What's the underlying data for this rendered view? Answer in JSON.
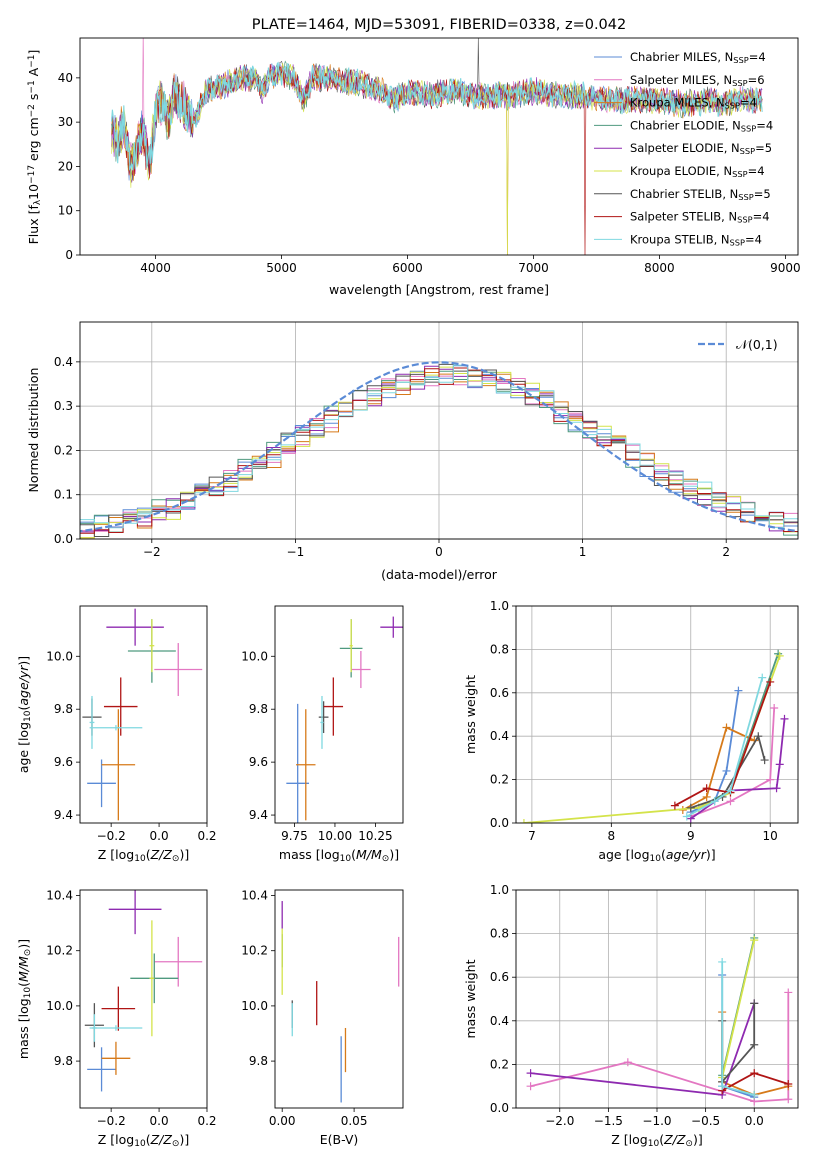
{
  "chart_data": [
    {
      "id": "spectrum",
      "type": "line",
      "title": "PLATE=1464, MJD=53091, FIBERID=0338, z=0.042",
      "xlabel": "wavelength [Angstrom, rest frame]",
      "ylabel": "Flux [f_λ10^-17 erg cm^-2 s^-1 A^-1]",
      "xlim": [
        3400,
        9100
      ],
      "ylim": [
        0,
        49
      ],
      "xticks": [
        4000,
        5000,
        6000,
        7000,
        8000,
        9000
      ],
      "yticks": [
        0,
        10,
        20,
        30,
        40
      ],
      "grid": false,
      "legend_position": "top-right",
      "anchors": [
        [
          3650,
          28
        ],
        [
          3700,
          26
        ],
        [
          3750,
          30
        ],
        [
          3800,
          20
        ],
        [
          3850,
          24
        ],
        [
          3900,
          28
        ],
        [
          3950,
          20
        ],
        [
          4000,
          32
        ],
        [
          4050,
          35
        ],
        [
          4100,
          30
        ],
        [
          4150,
          36
        ],
        [
          4200,
          35
        ],
        [
          4300,
          30
        ],
        [
          4400,
          37
        ],
        [
          4500,
          38
        ],
        [
          4600,
          39
        ],
        [
          4700,
          40
        ],
        [
          4800,
          40
        ],
        [
          4850,
          37
        ],
        [
          4900,
          40
        ],
        [
          5000,
          41
        ],
        [
          5100,
          40
        ],
        [
          5175,
          35
        ],
        [
          5250,
          40
        ],
        [
          5400,
          40
        ],
        [
          5500,
          39
        ],
        [
          5600,
          39
        ],
        [
          5700,
          38
        ],
        [
          5800,
          37
        ],
        [
          5890,
          35
        ],
        [
          6000,
          37
        ],
        [
          6200,
          36
        ],
        [
          6300,
          37
        ],
        [
          6400,
          37
        ],
        [
          6500,
          36
        ],
        [
          6563,
          36
        ],
        [
          6700,
          36
        ],
        [
          6800,
          36
        ],
        [
          7000,
          37
        ],
        [
          7200,
          36
        ],
        [
          7400,
          36
        ],
        [
          7600,
          35
        ],
        [
          7800,
          35
        ],
        [
          8000,
          35
        ],
        [
          8200,
          34
        ],
        [
          8400,
          35
        ],
        [
          8500,
          34
        ],
        [
          8600,
          35
        ],
        [
          8800,
          35
        ]
      ],
      "series": [
        {
          "name": "Chabrier MILES, N_SSP=4",
          "label_main": "Chabrier MILES, N",
          "sub": "SSP",
          "label_end": "=4",
          "color": "#5b8bd6"
        },
        {
          "name": "Salpeter MILES, N_SSP=6",
          "label_main": "Salpeter MILES, N",
          "sub": "SSP",
          "label_end": "=6",
          "color": "#e377c2"
        },
        {
          "name": "Kroupa MILES, N_SSP=4",
          "label_main": "Kroupa MILES, N",
          "sub": "SSP",
          "label_end": "=4",
          "color": "#d67a1a"
        },
        {
          "name": "Chabrier ELODIE, N_SSP=4",
          "label_main": "Chabrier ELODIE, N",
          "sub": "SSP",
          "label_end": "=4",
          "color": "#4f9a7f"
        },
        {
          "name": "Salpeter ELODIE, N_SSP=5",
          "label_main": "Salpeter ELODIE, N",
          "sub": "SSP",
          "label_end": "=5",
          "color": "#8e2ab0"
        },
        {
          "name": "Kroupa ELODIE, N_SSP=4",
          "label_main": "Kroupa ELODIE, N",
          "sub": "SSP",
          "label_end": "=4",
          "color": "#d4e34a"
        },
        {
          "name": "Chabrier STELIB, N_SSP=5",
          "label_main": "Chabrier STELIB, N",
          "sub": "SSP",
          "label_end": "=5",
          "color": "#555555"
        },
        {
          "name": "Salpeter STELIB, N_SSP=4",
          "label_main": "Salpeter STELIB, N",
          "sub": "SSP",
          "label_end": "=4",
          "color": "#b01515"
        },
        {
          "name": "Kroupa STELIB, N_SSP=4",
          "label_main": "Kroupa STELIB, N",
          "sub": "SSP",
          "label_end": "=4",
          "color": "#7fd8e0"
        }
      ]
    },
    {
      "id": "residuals",
      "type": "histogram",
      "xlabel": "(data-model)/error",
      "ylabel": "Normed distribution",
      "xlim": [
        -2.5,
        2.5
      ],
      "ylim": [
        0,
        0.49
      ],
      "xticks": [
        -2,
        -1,
        0,
        1,
        2
      ],
      "yticks": [
        0,
        0.1,
        0.2,
        0.3,
        0.4
      ],
      "grid": true,
      "legend": "𝒩(0,1)",
      "gaussian_color": "#5b8bd6"
    },
    {
      "id": "age_vs_Z",
      "type": "errorbar",
      "xlabel": "Z [log10(Z/Z⊙)]",
      "ylabel": "age  [log10(age/yr)]",
      "xlim": [
        -0.33,
        0.2
      ],
      "ylim": [
        9.37,
        10.19
      ],
      "xticks": [
        -0.2,
        0.0,
        0.2
      ],
      "yticks": [
        9.4,
        9.6,
        9.8,
        10.0
      ],
      "points": [
        {
          "x": -0.24,
          "xerr": 0.06,
          "y": 9.52,
          "yerr": 0.09,
          "color": "#5b8bd6"
        },
        {
          "x": 0.08,
          "xerr": 0.1,
          "y": 9.95,
          "yerr": 0.1,
          "color": "#e377c2"
        },
        {
          "x": -0.17,
          "xerr": 0.07,
          "y": 9.59,
          "yerr": 0.21,
          "color": "#d67a1a"
        },
        {
          "x": -0.03,
          "xerr": 0.1,
          "y": 10.02,
          "yerr": 0.12,
          "color": "#4f9a7f"
        },
        {
          "x": -0.1,
          "xerr": 0.12,
          "y": 10.11,
          "yerr": 0.07,
          "color": "#8e2ab0"
        },
        {
          "x": -0.03,
          "xerr": 0.01,
          "y": 10.04,
          "yerr": 0.1,
          "color": "#d4e34a"
        },
        {
          "x": -0.28,
          "xerr": 0.04,
          "y": 9.77,
          "yerr": 0.07,
          "color": "#555555"
        },
        {
          "x": -0.16,
          "xerr": 0.07,
          "y": 9.81,
          "yerr": 0.11,
          "color": "#b01515"
        },
        {
          "x": -0.28,
          "xerr": 0.01,
          "y": 9.75,
          "yerr": 0.1,
          "color": "#7fd8e0"
        },
        {
          "x": -0.18,
          "xerr": 0.11,
          "y": 9.73,
          "yerr": 0.01,
          "color": "#7fd8e0"
        }
      ]
    },
    {
      "id": "age_vs_mass",
      "type": "errorbar",
      "xlabel": "mass [log10(M/M⊙)]",
      "ylabel": "",
      "xlim": [
        9.63,
        10.42
      ],
      "ylim": [
        9.37,
        10.19
      ],
      "xticks": [
        9.75,
        10.0,
        10.25
      ],
      "yticks": [
        9.4,
        9.6,
        9.8,
        10.0
      ],
      "points": [
        {
          "x": 9.77,
          "xerr": 0.07,
          "y": 9.52,
          "yerr": 0.3,
          "color": "#5b8bd6"
        },
        {
          "x": 10.16,
          "xerr": 0.06,
          "y": 9.95,
          "yerr": 0.07,
          "color": "#e377c2"
        },
        {
          "x": 9.82,
          "xerr": 0.06,
          "y": 9.59,
          "yerr": 0.21,
          "color": "#d67a1a"
        },
        {
          "x": 10.1,
          "xerr": 0.07,
          "y": 10.03,
          "yerr": 0.11,
          "color": "#4f9a7f"
        },
        {
          "x": 10.36,
          "xerr": 0.08,
          "y": 10.11,
          "yerr": 0.04,
          "color": "#8e2ab0"
        },
        {
          "x": 10.1,
          "xerr": 0.01,
          "y": 10.04,
          "yerr": 0.1,
          "color": "#d4e34a"
        },
        {
          "x": 9.93,
          "xerr": 0.03,
          "y": 9.77,
          "yerr": 0.06,
          "color": "#555555"
        },
        {
          "x": 9.99,
          "xerr": 0.06,
          "y": 9.81,
          "yerr": 0.11,
          "color": "#b01515"
        },
        {
          "x": 9.92,
          "xerr": 0.01,
          "y": 9.75,
          "yerr": 0.1,
          "color": "#7fd8e0"
        }
      ]
    },
    {
      "id": "mass_weight_vs_age",
      "type": "line",
      "xlabel": "age  [log10(age/yr)]",
      "ylabel": "mass weight",
      "xlim": [
        6.8,
        10.35
      ],
      "ylim": [
        0,
        1
      ],
      "xticks": [
        7,
        8,
        9,
        10
      ],
      "yticks": [
        0,
        0.2,
        0.4,
        0.6,
        0.8,
        1.0
      ],
      "grid": true,
      "series": [
        {
          "color": "#5b8bd6",
          "points": [
            [
              9.0,
              0.05
            ],
            [
              9.3,
              0.1
            ],
            [
              9.45,
              0.24
            ],
            [
              9.6,
              0.61
            ]
          ]
        },
        {
          "color": "#e377c2",
          "points": [
            [
              9.0,
              0.03
            ],
            [
              9.5,
              0.1
            ],
            [
              10.0,
              0.2
            ],
            [
              10.05,
              0.53
            ]
          ]
        },
        {
          "color": "#d67a1a",
          "points": [
            [
              8.9,
              0.06
            ],
            [
              9.2,
              0.12
            ],
            [
              9.45,
              0.44
            ],
            [
              9.8,
              0.38
            ]
          ]
        },
        {
          "color": "#4f9a7f",
          "points": [
            [
              9.1,
              0.07
            ],
            [
              9.5,
              0.15
            ],
            [
              10.1,
              0.78
            ]
          ]
        },
        {
          "color": "#8e2ab0",
          "points": [
            [
              9.0,
              0.02
            ],
            [
              9.5,
              0.15
            ],
            [
              10.08,
              0.16
            ],
            [
              10.12,
              0.27
            ],
            [
              10.18,
              0.48
            ]
          ]
        },
        {
          "color": "#d4e34a",
          "points": [
            [
              6.9,
              0.0
            ],
            [
              9.1,
              0.07
            ],
            [
              9.5,
              0.14
            ],
            [
              10.12,
              0.77
            ]
          ]
        },
        {
          "color": "#555555",
          "points": [
            [
              9.0,
              0.07
            ],
            [
              9.4,
              0.12
            ],
            [
              9.85,
              0.4
            ],
            [
              9.93,
              0.29
            ]
          ]
        },
        {
          "color": "#b01515",
          "points": [
            [
              8.8,
              0.08
            ],
            [
              9.2,
              0.16
            ],
            [
              9.5,
              0.14
            ],
            [
              10.0,
              0.65
            ]
          ]
        },
        {
          "color": "#7fd8e0",
          "points": [
            [
              8.95,
              0.03
            ],
            [
              9.3,
              0.1
            ],
            [
              9.5,
              0.15
            ],
            [
              9.9,
              0.67
            ]
          ]
        }
      ]
    },
    {
      "id": "mass_vs_Z",
      "type": "errorbar",
      "xlabel": "Z [log10(Z/Z⊙)]",
      "ylabel": "mass [log10(M/M⊙)]",
      "xlim": [
        -0.33,
        0.2
      ],
      "ylim": [
        9.63,
        10.42
      ],
      "xticks": [
        -0.2,
        0.0,
        0.2
      ],
      "yticks": [
        9.8,
        10.0,
        10.2,
        10.4
      ],
      "points": [
        {
          "x": -0.24,
          "xerr": 0.06,
          "y": 9.77,
          "yerr": 0.08,
          "color": "#5b8bd6"
        },
        {
          "x": 0.08,
          "xerr": 0.1,
          "y": 10.16,
          "yerr": 0.09,
          "color": "#e377c2"
        },
        {
          "x": -0.18,
          "xerr": 0.06,
          "y": 9.81,
          "yerr": 0.06,
          "color": "#d67a1a"
        },
        {
          "x": -0.02,
          "xerr": 0.1,
          "y": 10.1,
          "yerr": 0.09,
          "color": "#4f9a7f"
        },
        {
          "x": -0.1,
          "xerr": 0.11,
          "y": 10.35,
          "yerr": 0.09,
          "color": "#8e2ab0"
        },
        {
          "x": -0.03,
          "xerr": 0.01,
          "y": 10.1,
          "yerr": 0.21,
          "color": "#d4e34a"
        },
        {
          "x": -0.27,
          "xerr": 0.04,
          "y": 9.93,
          "yerr": 0.08,
          "color": "#555555"
        },
        {
          "x": -0.17,
          "xerr": 0.07,
          "y": 9.99,
          "yerr": 0.08,
          "color": "#b01515"
        },
        {
          "x": -0.27,
          "xerr": 0.01,
          "y": 9.92,
          "yerr": 0.05,
          "color": "#7fd8e0"
        },
        {
          "x": -0.18,
          "xerr": 0.11,
          "y": 9.92,
          "yerr": 0.01,
          "color": "#7fd8e0"
        }
      ]
    },
    {
      "id": "mass_vs_EBV",
      "type": "errorbar",
      "xlabel": "E(B-V)",
      "ylabel": "",
      "xlim": [
        -0.005,
        0.084
      ],
      "ylim": [
        9.63,
        10.42
      ],
      "xticks": [
        0.0,
        0.05
      ],
      "yticks": [
        9.8,
        10.0,
        10.2,
        10.4
      ],
      "points": [
        {
          "x": 0.041,
          "xerr": 0.0,
          "y": 9.77,
          "yerr": 0.12,
          "color": "#5b8bd6"
        },
        {
          "x": 0.081,
          "xerr": 0.0,
          "y": 10.16,
          "yerr": 0.09,
          "color": "#e377c2"
        },
        {
          "x": 0.044,
          "xerr": 0.0,
          "y": 9.84,
          "yerr": 0.08,
          "color": "#d67a1a"
        },
        {
          "x": 0.0,
          "xerr": 0.0,
          "y": 10.2,
          "yerr": 0.06,
          "color": "#4f9a7f"
        },
        {
          "x": 0.0,
          "xerr": 0.0,
          "y": 10.33,
          "yerr": 0.05,
          "color": "#8e2ab0"
        },
        {
          "x": 0.0,
          "xerr": 0.0,
          "y": 10.16,
          "yerr": 0.12,
          "color": "#d4e34a"
        },
        {
          "x": 0.007,
          "xerr": 0.0,
          "y": 9.97,
          "yerr": 0.05,
          "color": "#555555"
        },
        {
          "x": 0.024,
          "xerr": 0.0,
          "y": 10.01,
          "yerr": 0.08,
          "color": "#b01515"
        },
        {
          "x": 0.007,
          "xerr": 0.0,
          "y": 9.95,
          "yerr": 0.06,
          "color": "#7fd8e0"
        }
      ]
    },
    {
      "id": "mass_weight_vs_Z",
      "type": "line",
      "xlabel": "Z [log10(Z/Z⊙)]",
      "ylabel": "mass weight",
      "xlim": [
        -2.45,
        0.45
      ],
      "ylim": [
        0,
        1
      ],
      "xticks": [
        -2.0,
        -1.5,
        -1.0,
        -0.5,
        0.0
      ],
      "yticks": [
        0,
        0.2,
        0.4,
        0.6,
        0.8,
        1.0
      ],
      "grid": true,
      "series": [
        {
          "color": "#5b8bd6",
          "points": [
            [
              -0.33,
              0.61
            ],
            [
              -0.33,
              0.1
            ],
            [
              0.0,
              0.05
            ]
          ]
        },
        {
          "color": "#e377c2",
          "points": [
            [
              -2.3,
              0.1
            ],
            [
              -1.3,
              0.21
            ],
            [
              0.0,
              0.03
            ],
            [
              0.35,
              0.04
            ],
            [
              0.35,
              0.53
            ]
          ]
        },
        {
          "color": "#d67a1a",
          "points": [
            [
              -0.33,
              0.44
            ],
            [
              -0.33,
              0.12
            ],
            [
              0.0,
              0.06
            ],
            [
              0.35,
              0.1
            ]
          ]
        },
        {
          "color": "#4f9a7f",
          "points": [
            [
              -0.33,
              0.15
            ],
            [
              0.0,
              0.78
            ]
          ]
        },
        {
          "color": "#8e2ab0",
          "points": [
            [
              -2.3,
              0.16
            ],
            [
              -0.33,
              0.06
            ],
            [
              0.0,
              0.48
            ]
          ]
        },
        {
          "color": "#d4e34a",
          "points": [
            [
              -0.33,
              0.14
            ],
            [
              0.0,
              0.77
            ]
          ]
        },
        {
          "color": "#555555",
          "points": [
            [
              -0.33,
              0.4
            ],
            [
              -0.33,
              0.12
            ],
            [
              0.0,
              0.29
            ],
            [
              0.0,
              0.48
            ]
          ]
        },
        {
          "color": "#b01515",
          "points": [
            [
              -0.33,
              0.08
            ],
            [
              0.0,
              0.16
            ],
            [
              0.35,
              0.11
            ]
          ]
        },
        {
          "color": "#7fd8e0",
          "points": [
            [
              -0.33,
              0.67
            ],
            [
              -0.33,
              0.1
            ],
            [
              0.0,
              0.06
            ]
          ]
        }
      ]
    }
  ]
}
